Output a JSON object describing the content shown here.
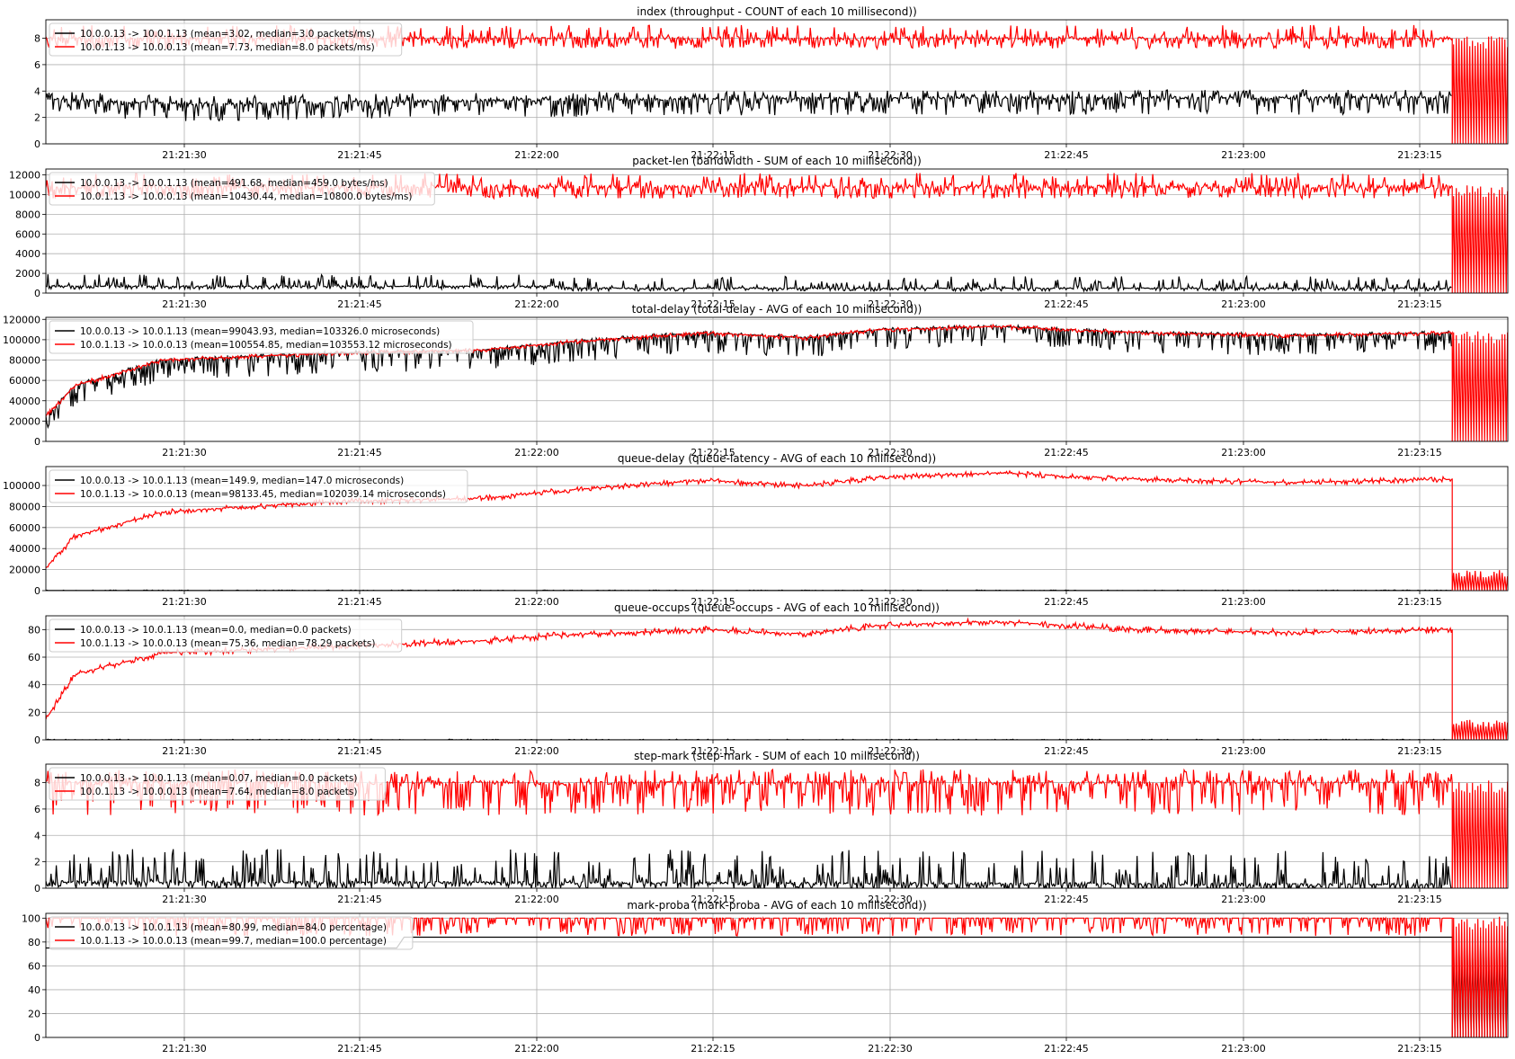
{
  "figure": {
    "background": "#ffffff",
    "series_colors": {
      "a_to_b": "#000000",
      "b_to_a": "#ff0000"
    },
    "grid": true,
    "legend_placement": "upper-left",
    "x_ticks": [
      "21:21:30",
      "21:21:45",
      "21:22:00",
      "21:22:15",
      "21:22:30",
      "21:22:45",
      "21:23:00",
      "21:23:15"
    ]
  },
  "chart_data": [
    {
      "type": "line",
      "title": "index (throughput - COUNT of each 10 millisecond))",
      "y_ticks": [
        "0",
        "2",
        "4",
        "6",
        "8"
      ],
      "ylim": [
        0,
        9.4
      ],
      "series": [
        {
          "name": "10.0.0.13 -> 10.0.1.13 (mean=3.02, median=3.0 packets/ms)",
          "color": "#000000",
          "profile": {
            "x": [
              0,
              0.1,
              0.3,
              0.6,
              0.96
            ],
            "y": [
              3.4,
              3.0,
              3.3,
              3.5,
              3.5
            ]
          },
          "amp_lo": 1.3,
          "amp_hi": 0.6
        },
        {
          "name": "10.0.1.13 -> 10.0.0.13 (mean=7.73, median=8.0 packets/ms)",
          "color": "#ff0000",
          "profile": {
            "x": [
              0,
              0.96
            ],
            "y": [
              8.0,
              8.0
            ]
          },
          "amp_lo": 0.8,
          "amp_hi": 1.0
        }
      ]
    },
    {
      "type": "line",
      "title": "packet-len (bandwidth - SUM of each 10 millisecond))",
      "y_ticks": [
        "0",
        "2000",
        "4000",
        "6000",
        "8000",
        "10000",
        "12000"
      ],
      "ylim": [
        0,
        12600
      ],
      "series": [
        {
          "name": "10.0.0.13 -> 10.0.1.13 (mean=491.68, median=459.0 bytes/ms)",
          "color": "#000000",
          "profile": {
            "x": [
              0,
              0.35,
              0.36,
              0.96
            ],
            "y": [
              700,
              700,
              500,
              500
            ]
          },
          "amp_lo": 300,
          "amp_hi": 1200
        },
        {
          "name": "10.0.1.13 -> 10.0.0.13 (mean=10430.44, median=10800.0 bytes/ms)",
          "color": "#ff0000",
          "profile": {
            "x": [
              0,
              0.96
            ],
            "y": [
              10800,
              10800
            ]
          },
          "amp_lo": 1200,
          "amp_hi": 1400
        }
      ]
    },
    {
      "type": "line",
      "title": "total-delay (total-delay - AVG of each 10 millisecond))",
      "y_ticks": [
        "0",
        "20000",
        "40000",
        "60000",
        "80000",
        "100000",
        "120000"
      ],
      "ylim": [
        0,
        122000
      ],
      "series": [
        {
          "name": "10.0.0.13 -> 10.0.1.13 (mean=99043.93, median=103326.0 microseconds)",
          "color": "#000000",
          "profile": {
            "x": [
              0,
              0.02,
              0.08,
              0.2,
              0.3,
              0.35,
              0.45,
              0.52,
              0.57,
              0.65,
              0.75,
              0.85,
              0.96
            ],
            "y": [
              25000,
              55000,
              80000,
              87000,
              90000,
              97000,
              107000,
              102000,
              110000,
              113000,
              107000,
              104000,
              107000
            ]
          },
          "amp_lo": 20000,
          "amp_hi": 2000
        },
        {
          "name": "10.0.1.13 -> 10.0.0.13 (mean=100554.85, median=103553.12 microseconds)",
          "color": "#ff0000",
          "profile": {
            "x": [
              0,
              0.02,
              0.08,
              0.2,
              0.3,
              0.35,
              0.45,
              0.52,
              0.57,
              0.65,
              0.75,
              0.85,
              0.96
            ],
            "y": [
              25000,
              55000,
              80000,
              87000,
              90000,
              97000,
              107000,
              102000,
              110000,
              113000,
              107000,
              104000,
              107000
            ]
          },
          "amp_lo": 2500,
          "amp_hi": 2000
        }
      ]
    },
    {
      "type": "line",
      "title": "queue-delay (queue-latency - AVG of each 10 millisecond))",
      "y_ticks": [
        "0",
        "20000",
        "40000",
        "60000",
        "80000",
        "100000"
      ],
      "ylim": [
        0,
        118000
      ],
      "series": [
        {
          "name": "10.0.0.13 -> 10.0.1.13 (mean=149.9, median=147.0 microseconds)",
          "color": "#000000",
          "profile": {
            "x": [
              0,
              1
            ],
            "y": [
              150,
              150
            ]
          },
          "amp_lo": 100,
          "amp_hi": 400
        },
        {
          "name": "10.0.1.13 -> 10.0.0.13 (mean=98133.45, median=102039.14 microseconds)",
          "color": "#ff0000",
          "profile": {
            "x": [
              0,
              0.02,
              0.08,
              0.2,
              0.3,
              0.35,
              0.45,
              0.52,
              0.57,
              0.65,
              0.75,
              0.85,
              0.96
            ],
            "y": [
              22000,
              52000,
              75000,
              85000,
              88000,
              95000,
              105000,
              100000,
              108000,
              112000,
              106000,
              103000,
              106000
            ]
          },
          "amp_lo": 3000,
          "amp_hi": 2500
        }
      ]
    },
    {
      "type": "line",
      "title": "queue-occups (queue-occups - AVG of each 10 millisecond))",
      "y_ticks": [
        "0",
        "20",
        "40",
        "60",
        "80"
      ],
      "ylim": [
        0,
        90
      ],
      "series": [
        {
          "name": "10.0.0.13 -> 10.0.1.13 (mean=0.0, median=0.0 packets)",
          "color": "#000000",
          "profile": {
            "x": [
              0,
              1
            ],
            "y": [
              0,
              0
            ]
          },
          "amp_lo": 0,
          "amp_hi": 0.5
        },
        {
          "name": "10.0.1.13 -> 10.0.0.13 (mean=75.36, median=78.29 packets)",
          "color": "#ff0000",
          "profile": {
            "x": [
              0,
              0.02,
              0.08,
              0.2,
              0.3,
              0.35,
              0.45,
              0.52,
              0.57,
              0.65,
              0.75,
              0.85,
              0.96
            ],
            "y": [
              15000,
              48000,
              63000,
              68000,
              72000,
              76000,
              80000,
              77000,
              83000,
              86000,
              80000,
              78000,
              80000
            ]
          },
          "scale": 0.001,
          "amp_lo": 2.5,
          "amp_hi": 2.5
        }
      ]
    },
    {
      "type": "line",
      "title": "step-mark (step-mark - SUM of each 10 millisecond))",
      "y_ticks": [
        "0",
        "2",
        "4",
        "6",
        "8"
      ],
      "ylim": [
        0,
        9.4
      ],
      "series": [
        {
          "name": "10.0.0.13 -> 10.0.1.13 (mean=0.07, median=0.0 packets)",
          "color": "#000000",
          "profile": {
            "x": [
              0,
              0.96
            ],
            "y": [
              0.5,
              0.3
            ]
          },
          "amp_lo": 0.5,
          "amp_hi": 2.5
        },
        {
          "name": "10.0.1.13 -> 10.0.0.13 (mean=7.64, median=8.0 packets)",
          "color": "#ff0000",
          "profile": {
            "x": [
              0,
              0.96
            ],
            "y": [
              8.0,
              8.0
            ]
          },
          "amp_lo": 2.5,
          "amp_hi": 1.0
        }
      ]
    },
    {
      "type": "line",
      "title": "mark-proba (mark-proba - AVG of each 10 millisecond))",
      "y_ticks": [
        "0",
        "20",
        "40",
        "60",
        "80",
        "100"
      ],
      "ylim": [
        0,
        104
      ],
      "series": [
        {
          "name": "10.0.0.13 -> 10.0.1.13 (mean=80.99, median=84.0 percentage)",
          "color": "#000000",
          "profile": {
            "x": [
              0,
              0.24,
              0.245,
              0.96
            ],
            "y": [
              75,
              75,
              84,
              84
            ]
          },
          "amp_lo": 0,
          "amp_hi": 0
        },
        {
          "name": "10.0.1.13 -> 10.0.0.13 (mean=99.7, median=100.0 percentage)",
          "color": "#ff0000",
          "profile": {
            "x": [
              0,
              0.96
            ],
            "y": [
              100,
              100
            ]
          },
          "amp_lo": 15,
          "amp_hi": 0
        }
      ]
    }
  ]
}
